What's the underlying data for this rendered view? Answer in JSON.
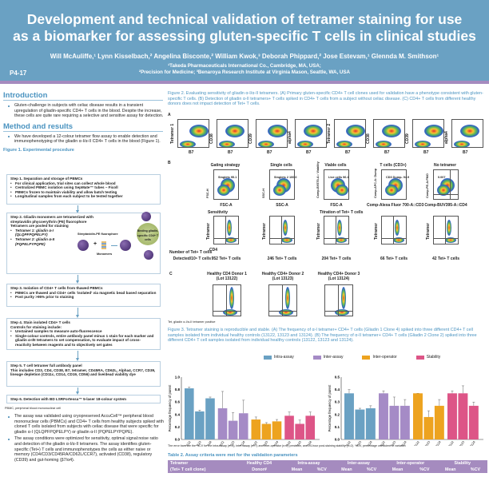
{
  "header": {
    "title_line1": "Development and technical validation of tetramer staining for use",
    "title_line2": "as a biomarker for assessing gluten-specific T cells in clinical studies",
    "authors": "Will McAuliffe,¹ Lynn Kisselbach,² Angelina Bisconte,² William Kwok,³ Deborah Phippard,² Jose Estevam,¹ Glennda M. Smithson¹",
    "affil1": "¹Takeda Pharmaceuticals International Co., Cambridge, MA, USA;",
    "affil2": "²Precision for Medicine; ³Benaroya Research Institute at Virginia Mason, Seattle, WA, USA",
    "poster_id": "P4-17",
    "color": "#6aa1c3",
    "band_color": "#a58bbf"
  },
  "intro": {
    "heading": "Introduction",
    "bullets": [
      "Gluten-challenge in subjects with celiac disease results in a transient upregulation of gliadin-specific CD4+ T cells in the blood. Despite the increase, these cells are quite rare requiring a selective and sensitive assay for detection."
    ]
  },
  "method": {
    "heading": "Method and results",
    "bullets": [
      "We have developed a 12-colour tetramer flow assay to enable detection and immunophenotyping of the gliadin α-I/α-II CD4+ T cells in the blood (Figure 1)."
    ]
  },
  "figure1": {
    "title": "Figure 1. Experimental procedure",
    "steps": [
      {
        "title": "Step 1.  Separation and storage of PBMCs",
        "items": [
          "For clinical application, trial sites can collect whole blood",
          "Centralized PBMC isolation using SepMate™ tubes – Ficoll",
          "PBMCs frozen to maintain viability and allow batch testing",
          "Longitudinal samples from each subject to be tested together"
        ]
      },
      {
        "title": "Step 2.  Gliadin monomers are tetramerized with streptavidin phycoerythrin (PE) fluorophore",
        "subtitle": "Tetramers are pooled for staining",
        "items": [
          "Tetramer 1: gliadin α-I (QLQPFPQPELPY)",
          "Tetramer 2: gliadin α-II (PQPELPYPQPE)"
        ],
        "diagram_labels": {
          "sa": "Streptavidin-PE fluorophore",
          "mono": "Monomers",
          "cell": "Binding gliadin-specific CD4+ T cells"
        }
      },
      {
        "title": "Step 3. Isolation of CD4+ T cells  from thawed PBMCs",
        "items": [
          "PBMCs are thawed and CD4+ cells 'isolated' via magnetic bead based separation",
          "Post purity >95% prior to staining"
        ]
      },
      {
        "title": "Step 4. Stain isolated CD4+ T cells",
        "subtitle": "Controls for staining include:",
        "items": [
          "Unstained samples to measure auto-fluorescence",
          "Single-colour controls, entire antibody panel minus 1 stain for each marker and gliadin α-I/II tetramers to set compensation, to evaluate impact of cross-reactivity between reagents and to objectively set gates"
        ]
      },
      {
        "title": "Step 5. T cell tetramer full antibody panel",
        "subtitle": "This includes CD3, CD4, CD38, B7, tetramer, CD45RA, CD62L, Alpha4, CCR7, CD39, lineage depletion (CD11c, CD14, CD19, CD56) and live/dead viability dye"
      },
      {
        "title": "Step 6. Detection with BD LSRFortessa™ 5-laser 18-colour system"
      }
    ],
    "footnote": "PBMC, peripheral blood mononuclear cell"
  },
  "results": {
    "bullets": [
      "The assay was validated using cryopreserved AccuCell™ peripheral blood mononuclear cells (PBMCs) and CD4+ T cells from healthy subjects spiked with cloned T cells isolated from subjects with celiac disease that were specific for gliadin α-I (QLQPFPQPELPY) or gliadin α-II (PQPELPYPQPE).",
      "The assay conditions were optimized for sensitivity, optimal signal:noise ratio and detection of the gliadin α-I/α-II tetramers. The assay identifies gluten-specific (Tet+) T cells and immunophenotypes the cells as either naive or memory (CD4/CD3/CD45RA/CD62L/CCR7), activated (CD38), regulatory (CD39) and gut-homing (β7/α4)."
    ]
  },
  "figure2": {
    "caption": "Figure 2. Evaluating sensitivity of gliadin α-I/α-II tetramers. (A) Primary gluten-specific CD4+ T cell clones used for validation have a phenotype consistent with gluten-specific T cells. (B) Detection of gliadin α-II tetramers+ T cells spiked in CD4+ T cells from a subject without celiac disease. (C) CD4+ T cells from different healthy donors does not impact detection of Tet+ T cells.",
    "panel_a": {
      "label": "A",
      "plots": [
        {
          "y": "Tetramer 1",
          "x": "B7"
        },
        {
          "y": "CD38",
          "x": "B7"
        },
        {
          "y": "CD39",
          "x": "B7"
        },
        {
          "y": "alpha4",
          "x": "B7"
        },
        {
          "y": "Tetramer 2",
          "x": "B7"
        },
        {
          "y": "CD38",
          "x": "B7"
        },
        {
          "y": "CD39",
          "x": "B7"
        },
        {
          "y": "alpha4",
          "x": "B7"
        }
      ]
    },
    "panel_b": {
      "label": "B",
      "gating": [
        {
          "title": "Gating strategy",
          "y": "FSC-H",
          "x": "FSC-A",
          "gate": "Singlets 95.1"
        },
        {
          "title": "Single cells",
          "y": "SSC-H",
          "x": "SSC-A",
          "gate": "Singlets 2 100.0"
        },
        {
          "title": "Viable cells",
          "y": "Comp-BV570-A:: Viability",
          "x": "FSC-A",
          "gate": "Live cells 96.1"
        },
        {
          "title": "T cells (CD3+)",
          "y": "Comp-APC-A: Dump",
          "x": "Comp-Alexa Fluor 700-A::CD3",
          "gate": "CD3 Dump- 94.9"
        },
        {
          "title": "No tetramer",
          "y": "Comp-PE-A:FMO",
          "x": "Comp-BUV395-A::CD4",
          "gate": "0.007"
        }
      ],
      "sensitivity_title": "Sensitivity",
      "titration_title": "Titration of Tet+ T cells",
      "row_label1": "Number of Tet+ T cells",
      "row_label2": "Detected/10⁶ T cells",
      "x": "CD4",
      "y": "Tetramer",
      "titration": [
        "952 Tet+ T cells",
        "246 Tet+ T cells",
        "204 Tet+ T cells",
        "66 Tet+ T cells",
        "42 Tet+ T cells"
      ]
    },
    "panel_c": {
      "label": "C",
      "donors": [
        {
          "title": "Healthy CD4 Donor 1",
          "lot": "(Lot 13122)"
        },
        {
          "title": "Healthy CD4+ Donor 2",
          "lot": "(Lot 13123)"
        },
        {
          "title": "Healthy CD4+ Donor 3",
          "lot": "(Lot 13124)"
        }
      ],
      "footnote": "Tet, gliadin α-I/α-II tetramer positive"
    }
  },
  "figure3": {
    "caption": "Figure 3. Tetramer staining is reproducible and stable. (A) The frequency of α-I tetramer+ CD4+ T cells (Gliadin 1 Clone 4) spiked into three different CD4+ T cell samples isolated from individual healthy controls (13122, 13123 and 13124). (B) The frequency of α-II tetramer+ CD4+ T cells (Gliadin 2 Clone 2) spiked into three different CD4+ T cell samples isolated from individual healthy controls (13122, 13123 and 13124).",
    "footnote": "The error bars are the %CV for the intra-assay (n=3), inter-assay (n=7) and inter-operator (n=2) precision, and 24-hour post-staining stability (n=2). %CV, percentage coefficient of variation"
  },
  "chart_data": [
    {
      "type": "bar",
      "ylabel": "Percentage frequency of parent",
      "ylim": [
        0,
        1.0
      ],
      "yticks": [
        "0.0",
        "0.2",
        "0.4",
        "0.6",
        "0.8",
        "1.0"
      ],
      "categories": [
        "13122",
        "13123",
        "13124"
      ],
      "legend_position": "top",
      "series": [
        {
          "name": "Intra-assay",
          "color": "#6aa1c3",
          "values": [
            0.82,
            0.45,
            0.66
          ],
          "err_top": [
            0.84,
            0.47,
            0.68
          ]
        },
        {
          "name": "Inter-assay",
          "color": "#a58bc6",
          "values": [
            0.5,
            0.3,
            0.42
          ],
          "err_top": [
            0.77,
            0.43,
            0.63
          ]
        },
        {
          "name": "Inter-operator",
          "color": "#eda31f",
          "values": [
            0.32,
            0.25,
            0.29
          ],
          "err_top": [
            0.36,
            0.27,
            0.32
          ]
        },
        {
          "name": "Stability",
          "color": "#dd5587",
          "values": [
            0.38,
            0.25,
            0.38
          ],
          "err_top": [
            0.44,
            0.31,
            0.44
          ]
        }
      ]
    },
    {
      "type": "bar",
      "ylabel": "Percentage frequency of parent",
      "ylim": [
        0,
        0.5
      ],
      "yticks": [
        "0.0",
        "0.1",
        "0.2",
        "0.3",
        "0.4",
        "0.5"
      ],
      "categories": [
        "13122",
        "13123",
        "13124"
      ],
      "series": [
        {
          "name": "Intra-assay",
          "color": "#6aa1c3",
          "values": [
            0.37,
            0.24,
            0.25
          ],
          "err_top": [
            0.4,
            0.25,
            0.27
          ]
        },
        {
          "name": "Inter-assay",
          "color": "#a58bc6",
          "values": [
            0.37,
            0.27,
            0.27
          ],
          "err_top": [
            0.39,
            0.34,
            0.32
          ]
        },
        {
          "name": "Inter-operator",
          "color": "#eda31f",
          "values": [
            0.37,
            0.18,
            0.27
          ],
          "err_top": [
            0.37,
            0.23,
            0.32
          ]
        },
        {
          "name": "Stability",
          "color": "#dd5587",
          "values": [
            0.37,
            0.37,
            0.27
          ],
          "err_top": [
            0.39,
            0.43,
            0.3
          ]
        }
      ]
    }
  ],
  "table2": {
    "title": "Table 2. Assay criteria were met for the validation parameters",
    "header_row1": [
      "Tetramer",
      "Healthy CD4",
      "Intra-assay",
      "Inter-assay",
      "Inter-operator",
      "Stability"
    ],
    "header_row2": [
      "(Tet+ T cell clone)",
      "Donor#",
      "Mean",
      "%CV",
      "Mean",
      "%CV",
      "Mean",
      "%CV",
      "Mean",
      "%CV"
    ],
    "color": "#a58bbf"
  }
}
